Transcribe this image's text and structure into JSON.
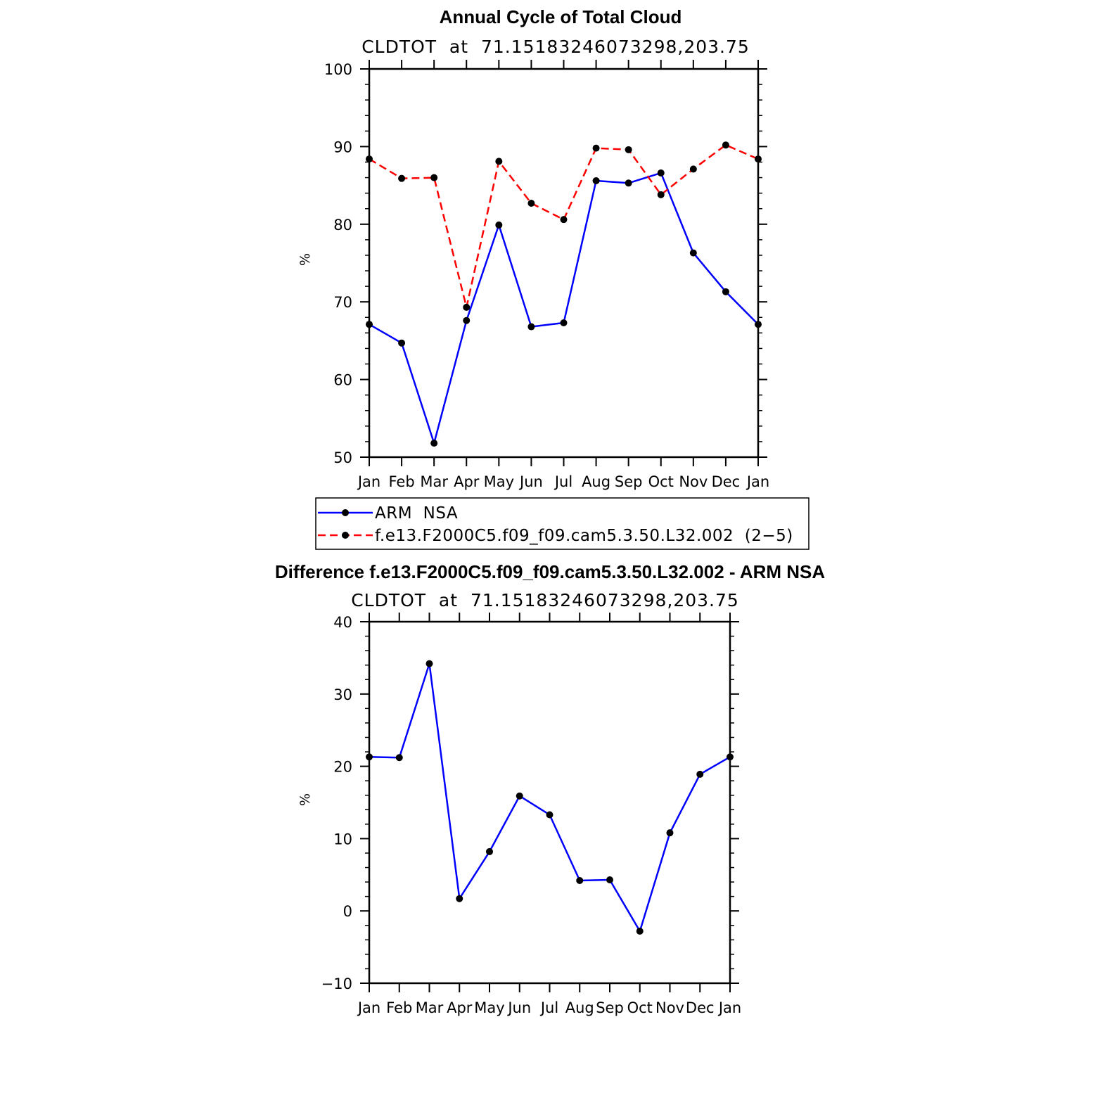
{
  "chart_data": [
    {
      "type": "line",
      "title": "Annual Cycle of Total Cloud",
      "subtitle": "CLDTOT  at  71.15183246073298,203.75",
      "ylabel": "%",
      "xlabel": "",
      "ylim": [
        50,
        100
      ],
      "yticks": [
        50,
        60,
        70,
        80,
        90,
        100
      ],
      "yticklabels": [
        "50",
        "60",
        "70",
        "80",
        "90",
        "100"
      ],
      "categories": [
        "Jan",
        "Feb",
        "Mar",
        "Apr",
        "May",
        "Jun",
        "Jul",
        "Aug",
        "Sep",
        "Oct",
        "Nov",
        "Dec",
        "Jan"
      ],
      "grid": false,
      "legend": "below",
      "series": [
        {
          "name": "ARM  NSA",
          "color": "#0000ff",
          "style": "solid",
          "values": [
            67.1,
            64.7,
            51.8,
            67.6,
            79.9,
            66.8,
            67.3,
            85.6,
            85.3,
            86.6,
            76.3,
            71.3,
            67.1
          ]
        },
        {
          "name": "f.e13.F2000C5.f09_f09.cam5.3.50.L32.002  (2−5)",
          "color": "#ff0000",
          "style": "dashed",
          "values": [
            88.4,
            85.9,
            86.0,
            69.3,
            88.1,
            82.7,
            80.6,
            89.8,
            89.6,
            83.8,
            87.1,
            90.2,
            88.4
          ]
        }
      ]
    },
    {
      "type": "line",
      "title": "Difference f.e13.F2000C5.f09_f09.cam5.3.50.L32.002 - ARM NSA",
      "subtitle": "CLDTOT  at  71.15183246073298,203.75",
      "ylabel": "%",
      "xlabel": "",
      "ylim": [
        -10,
        40
      ],
      "yticks": [
        -10,
        0,
        10,
        20,
        30,
        40
      ],
      "yticklabels": [
        "−10",
        "0",
        "10",
        "20",
        "30",
        "40"
      ],
      "categories": [
        "Jan",
        "Feb",
        "Mar",
        "Apr",
        "May",
        "Jun",
        "Jul",
        "Aug",
        "Sep",
        "Oct",
        "Nov",
        "Dec",
        "Jan"
      ],
      "grid": false,
      "series": [
        {
          "color": "#0000ff",
          "style": "solid",
          "values": [
            21.3,
            21.2,
            34.2,
            1.7,
            8.2,
            15.9,
            13.3,
            4.2,
            4.3,
            -2.8,
            10.8,
            18.9,
            21.3
          ]
        }
      ]
    }
  ]
}
